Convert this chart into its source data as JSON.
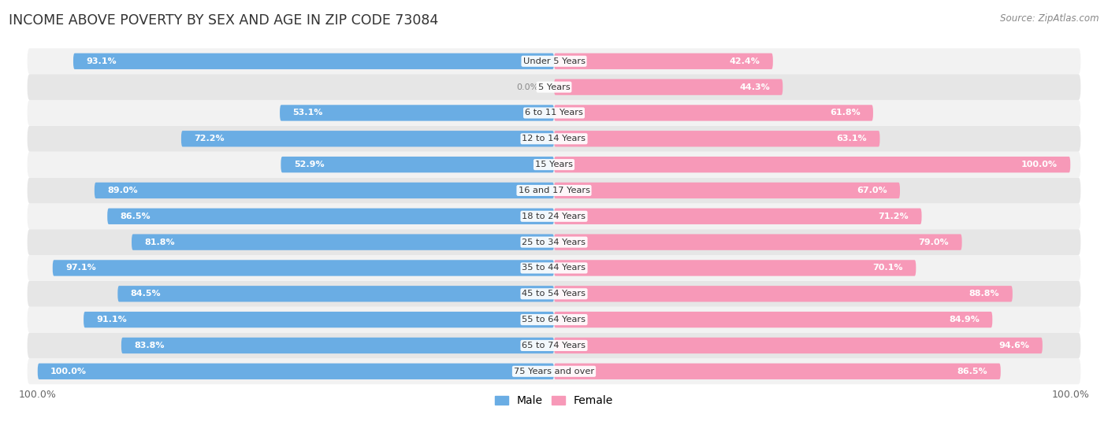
{
  "title": "INCOME ABOVE POVERTY BY SEX AND AGE IN ZIP CODE 73084",
  "source": "Source: ZipAtlas.com",
  "categories": [
    "Under 5 Years",
    "5 Years",
    "6 to 11 Years",
    "12 to 14 Years",
    "15 Years",
    "16 and 17 Years",
    "18 to 24 Years",
    "25 to 34 Years",
    "35 to 44 Years",
    "45 to 54 Years",
    "55 to 64 Years",
    "65 to 74 Years",
    "75 Years and over"
  ],
  "male_values": [
    93.1,
    0.0,
    53.1,
    72.2,
    52.9,
    89.0,
    86.5,
    81.8,
    97.1,
    84.5,
    91.1,
    83.8,
    100.0
  ],
  "female_values": [
    42.4,
    44.3,
    61.8,
    63.1,
    100.0,
    67.0,
    71.2,
    79.0,
    70.1,
    88.8,
    84.9,
    94.6,
    86.5
  ],
  "male_color": "#6aade4",
  "female_color": "#f799b8",
  "male_label": "Male",
  "female_label": "Female",
  "max_value": 100.0,
  "row_even_color": "#f7f7f7",
  "row_odd_color": "#ebebeb",
  "row_bg_color": "#e0e0e8"
}
